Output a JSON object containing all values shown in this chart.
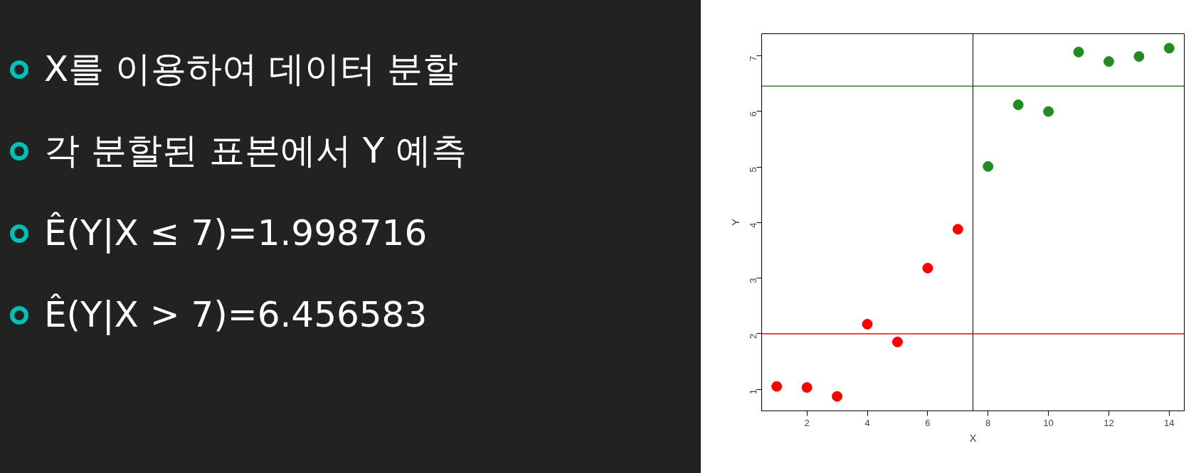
{
  "chart_data": {
    "type": "scatter",
    "xlabel": "X",
    "ylabel": "Y",
    "annotations": [
      "X를 이용하여 데이터 분할",
      "각 분할된 표본에서 Y 예측",
      "Ê(Y|X ≤ 7)=1.998716",
      "Ê(Y|X > 7)=6.456583"
    ],
    "xlim": [
      0.5,
      14.5
    ],
    "ylim": [
      0.61,
      7.4
    ],
    "xticks": [
      2,
      4,
      6,
      8,
      10,
      12,
      14
    ],
    "yticks": [
      1,
      2,
      3,
      4,
      5,
      6,
      7
    ],
    "grid": false,
    "marker": "circle",
    "series": [
      {
        "color": "#ff0000",
        "x": [
          1,
          2,
          3,
          4,
          5,
          6,
          7
        ],
        "values": [
          1.05,
          1.03,
          0.87,
          2.17,
          1.85,
          3.18,
          3.88
        ]
      },
      {
        "color": "#228b22",
        "x": [
          8,
          9,
          10,
          11,
          12,
          13,
          14
        ],
        "values": [
          5.01,
          6.12,
          6.0,
          7.07,
          6.9,
          6.99,
          7.14
        ]
      }
    ],
    "ref_lines": [
      {
        "axis": "y",
        "value": 1.998716,
        "color": "#ff0000"
      },
      {
        "axis": "y",
        "value": 6.456583,
        "color": "#228b22"
      },
      {
        "axis": "x",
        "value": 7.5,
        "color": "#000000"
      }
    ]
  }
}
